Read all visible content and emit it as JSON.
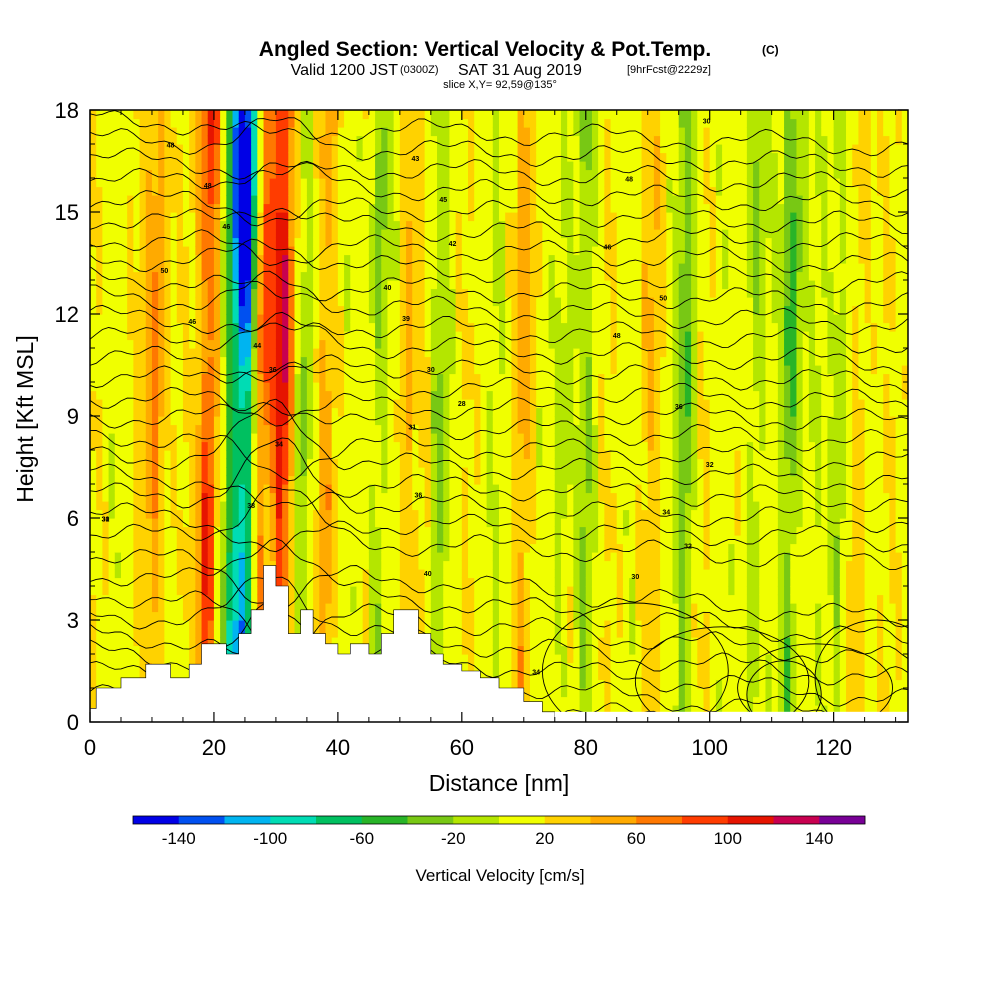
{
  "header": {
    "title": "Angled Section: Vertical Velocity & Pot.Temp.",
    "title_unit": "(C)",
    "valid_prefix": "Valid 1200 JST",
    "valid_utc": "(0300Z)",
    "valid_date": "SAT 31 Aug 2019",
    "forecast": "[9hrFcst@2229z]",
    "slice": "slice X,Y= 92,59@135°"
  },
  "colorbar": {
    "label": "Vertical Velocity [cm/s]",
    "ticks": [
      "-140",
      "-100",
      "-60",
      "-20",
      "20",
      "60",
      "100",
      "140"
    ],
    "bounds": [
      -160,
      -140,
      -120,
      -100,
      -80,
      -60,
      -40,
      -20,
      0,
      20,
      40,
      60,
      80,
      100,
      120,
      140,
      160
    ],
    "colors": [
      "#0000e6",
      "#0050f0",
      "#00b4f0",
      "#00dcb4",
      "#00c060",
      "#28b428",
      "#78c814",
      "#b4e600",
      "#f0ff00",
      "#ffd200",
      "#ffaa00",
      "#ff7800",
      "#ff3c00",
      "#e61400",
      "#c80050",
      "#780096"
    ]
  },
  "chart_data": {
    "type": "heatmap",
    "title": "Angled Section: Vertical Velocity & Pot.Temp.",
    "xlabel": "Distance [nm]",
    "ylabel": "Height [Kft MSL]",
    "xlim": [
      0,
      132
    ],
    "ylim": [
      0,
      18
    ],
    "x_ticks": [
      "0",
      "20",
      "40",
      "60",
      "80",
      "100",
      "120"
    ],
    "y_ticks": [
      "0",
      "3",
      "6",
      "9",
      "12",
      "15",
      "18"
    ],
    "shaded_field": "Vertical Velocity [cm/s]",
    "contour_field": "Potential Temperature (C)",
    "updrafts": [
      {
        "x": 10.5,
        "peak_cm_s": 70
      },
      {
        "x": 19,
        "peak_cm_s": 110
      },
      {
        "x": 28,
        "peak_cm_s": 110
      },
      {
        "x": 30.5,
        "peak_cm_s": 150
      },
      {
        "x": 32.5,
        "peak_cm_s": 40
      },
      {
        "x": 38,
        "peak_cm_s": 45
      },
      {
        "x": 51.5,
        "peak_cm_s": 65
      },
      {
        "x": 54,
        "peak_cm_s": 35
      },
      {
        "x": 66,
        "peak_cm_s": 30
      },
      {
        "x": 70,
        "peak_cm_s": 50
      },
      {
        "x": 90,
        "peak_cm_s": 35
      },
      {
        "x": 96,
        "peak_cm_s": 35
      },
      {
        "x": 117,
        "peak_cm_s": 45
      },
      {
        "x": 124,
        "peak_cm_s": 35
      }
    ],
    "downdrafts": [
      {
        "x": 25,
        "peak_cm_s": -140
      },
      {
        "x": 23,
        "peak_cm_s": -90
      },
      {
        "x": 29.5,
        "peak_cm_s": -60
      },
      {
        "x": 34,
        "peak_cm_s": -30
      },
      {
        "x": 46.5,
        "peak_cm_s": -35
      },
      {
        "x": 52.5,
        "peak_cm_s": -30
      },
      {
        "x": 56,
        "peak_cm_s": -30
      },
      {
        "x": 66,
        "peak_cm_s": -25
      },
      {
        "x": 76,
        "peak_cm_s": -25
      },
      {
        "x": 80,
        "peak_cm_s": -25
      },
      {
        "x": 96,
        "peak_cm_s": -70
      },
      {
        "x": 107,
        "peak_cm_s": -30
      },
      {
        "x": 113,
        "peak_cm_s": -60
      },
      {
        "x": 117,
        "peak_cm_s": -35
      },
      {
        "x": 121,
        "peak_cm_s": -30
      }
    ],
    "terrain": [
      {
        "x": 0,
        "h": 0.4
      },
      {
        "x": 1,
        "h": 1.0
      },
      {
        "x": 5,
        "h": 1.3
      },
      {
        "x": 9,
        "h": 1.7
      },
      {
        "x": 13,
        "h": 1.3
      },
      {
        "x": 16,
        "h": 1.7
      },
      {
        "x": 18,
        "h": 2.3
      },
      {
        "x": 22,
        "h": 2.0
      },
      {
        "x": 24,
        "h": 2.6
      },
      {
        "x": 26,
        "h": 3.3
      },
      {
        "x": 28,
        "h": 4.6
      },
      {
        "x": 30,
        "h": 4.0
      },
      {
        "x": 32,
        "h": 2.6
      },
      {
        "x": 34,
        "h": 3.3
      },
      {
        "x": 36,
        "h": 2.6
      },
      {
        "x": 38,
        "h": 2.3
      },
      {
        "x": 40,
        "h": 2.0
      },
      {
        "x": 42,
        "h": 2.3
      },
      {
        "x": 45,
        "h": 2.0
      },
      {
        "x": 47,
        "h": 2.6
      },
      {
        "x": 49,
        "h": 3.3
      },
      {
        "x": 53,
        "h": 2.6
      },
      {
        "x": 55,
        "h": 2.0
      },
      {
        "x": 57,
        "h": 1.7
      },
      {
        "x": 60,
        "h": 1.5
      },
      {
        "x": 63,
        "h": 1.3
      },
      {
        "x": 66,
        "h": 1.0
      },
      {
        "x": 70,
        "h": 0.6
      },
      {
        "x": 73,
        "h": 0.3
      },
      {
        "x": 75,
        "h": 0.3
      }
    ],
    "contour_labels": [
      "30",
      "28",
      "38",
      "34",
      "36",
      "44",
      "46",
      "48",
      "48",
      "50",
      "46",
      "30",
      "31",
      "36",
      "40",
      "40",
      "39",
      "34",
      "42",
      "45",
      "43",
      "48",
      "50",
      "48",
      "46",
      "36",
      "32",
      "34",
      "32",
      "30",
      "30",
      "31"
    ]
  }
}
